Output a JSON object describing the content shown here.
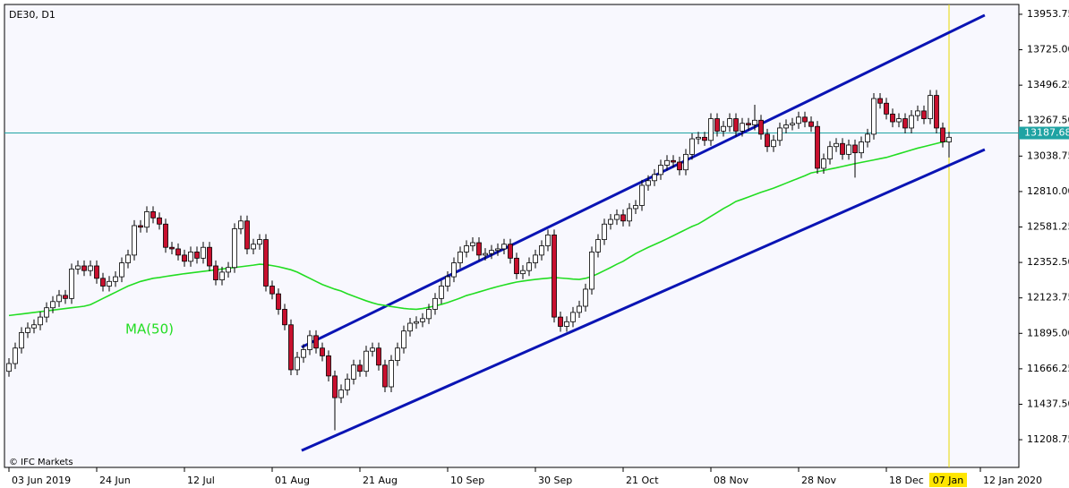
{
  "chart_data": {
    "type": "candlestick",
    "title": "DE30, D1",
    "watermark": "© IFC Markets",
    "categories": [
      "03 Jun 2019",
      null,
      null,
      null,
      null,
      null,
      null,
      null,
      null,
      null,
      null,
      null,
      null,
      null,
      "24 Jun",
      null,
      null,
      null,
      null,
      null,
      null,
      null,
      null,
      null,
      null,
      null,
      null,
      null,
      "12 Jul",
      null,
      null,
      null,
      null,
      null,
      null,
      null,
      null,
      null,
      null,
      null,
      null,
      null,
      "01 Aug",
      null,
      null,
      null,
      null,
      null,
      null,
      null,
      null,
      null,
      null,
      null,
      null,
      null,
      "21 Aug",
      null,
      null,
      null,
      null,
      null,
      null,
      null,
      null,
      null,
      null,
      null,
      null,
      null,
      "10 Sep",
      null,
      null,
      null,
      null,
      null,
      null,
      null,
      null,
      null,
      null,
      null,
      null,
      null,
      "30 Sep",
      null,
      null,
      null,
      null,
      null,
      null,
      null,
      null,
      null,
      null,
      null,
      null,
      null,
      "21 Oct",
      null,
      null,
      null,
      null,
      null,
      null,
      null,
      null,
      null,
      null,
      null,
      null,
      null,
      "08 Nov",
      null,
      null,
      null,
      null,
      null,
      null,
      null,
      null,
      null,
      null,
      null,
      null,
      null,
      "28 Nov",
      null,
      null,
      null,
      null,
      null,
      null,
      null,
      null,
      null,
      null,
      null,
      null,
      null,
      "18 Dec",
      null,
      null,
      null,
      null,
      null,
      null,
      null,
      null,
      null,
      "07 Jan",
      null,
      null,
      null,
      null,
      "12 Jan 2020"
    ],
    "open": [
      11650,
      11700,
      11800,
      11900,
      11930,
      11950,
      12000,
      12060,
      12100,
      12140,
      12120,
      12310,
      12330,
      12300,
      12330,
      12250,
      12200,
      12230,
      12260,
      12350,
      12400,
      12590,
      12580,
      12680,
      12640,
      12600,
      12450,
      12440,
      12400,
      12360,
      12420,
      12380,
      12450,
      12330,
      12240,
      12290,
      12320,
      12570,
      12620,
      12440,
      12470,
      12500,
      12200,
      12150,
      12050,
      11950,
      11660,
      11740,
      11790,
      11880,
      11800,
      11750,
      11620,
      11480,
      11530,
      11600,
      11690,
      11650,
      11780,
      11800,
      11690,
      11550,
      11720,
      11800,
      11910,
      11960,
      11970,
      11990,
      12050,
      12120,
      12200,
      12260,
      12350,
      12420,
      12460,
      12480,
      12400,
      12410,
      12430,
      12440,
      12470,
      12380,
      12280,
      12300,
      12350,
      12400,
      12460,
      12530,
      12000,
      11940,
      11970,
      12030,
      12070,
      12180,
      12420,
      12500,
      12600,
      12630,
      12660,
      12620,
      12700,
      12720,
      12850,
      12880,
      12920,
      12980,
      13010,
      13000,
      12950,
      13050,
      13150,
      13160,
      13140,
      13280,
      13200,
      13230,
      13280,
      13200,
      13250,
      13240,
      13270,
      13180,
      13100,
      13140,
      13220,
      13240,
      13250,
      13290,
      13260,
      13230,
      12960,
      13020,
      13100,
      13120,
      13050,
      13110,
      13060,
      13130,
      13180,
      13410,
      13380,
      13310,
      13260,
      13280,
      13220,
      13300,
      13330,
      13280,
      13430,
      13220,
      13130,
      null,
      null,
      null,
      null,
      null
    ],
    "high": [
      11735,
      11835,
      11935,
      11965,
      11985,
      12035,
      12095,
      12135,
      12175,
      12175,
      12345,
      12365,
      12365,
      12365,
      12365,
      12285,
      12265,
      12295,
      12385,
      12435,
      12625,
      12625,
      12715,
      12715,
      12675,
      12635,
      12485,
      12475,
      12435,
      12455,
      12455,
      12485,
      12485,
      12365,
      12325,
      12355,
      12605,
      12655,
      12655,
      12505,
      12535,
      12535,
      12235,
      12185,
      12085,
      11985,
      11775,
      11825,
      11915,
      11915,
      11835,
      11785,
      11655,
      11565,
      11635,
      11725,
      11725,
      11815,
      11835,
      11835,
      11725,
      11755,
      11835,
      11945,
      11995,
      12005,
      12025,
      12085,
      12155,
      12235,
      12295,
      12385,
      12455,
      12495,
      12515,
      12515,
      12445,
      12465,
      12475,
      12505,
      12505,
      12415,
      12335,
      12385,
      12435,
      12495,
      12565,
      12565,
      12035,
      12005,
      12065,
      12105,
      12215,
      12455,
      12535,
      12635,
      12665,
      12695,
      12695,
      12735,
      12755,
      12885,
      12915,
      12955,
      13015,
      13045,
      13045,
      13035,
      13085,
      13185,
      13195,
      13195,
      13315,
      13315,
      13265,
      13315,
      13315,
      13285,
      13285,
      13370,
      13305,
      13215,
      13175,
      13255,
      13275,
      13285,
      13325,
      13325,
      13295,
      13265,
      13055,
      13135,
      13155,
      13155,
      13145,
      13145,
      13165,
      13215,
      13445,
      13445,
      13415,
      13345,
      13315,
      13315,
      13335,
      13365,
      13365,
      13465,
      13465,
      13255,
      13195,
      null,
      null,
      null,
      null,
      null
    ],
    "low": [
      11615,
      11665,
      11765,
      11865,
      11895,
      11915,
      11965,
      12025,
      12065,
      12085,
      12085,
      12275,
      12265,
      12265,
      12215,
      12165,
      12165,
      12195,
      12225,
      12315,
      12365,
      12545,
      12545,
      12605,
      12565,
      12415,
      12405,
      12365,
      12325,
      12325,
      12345,
      12345,
      12295,
      12205,
      12205,
      12255,
      12285,
      12535,
      12405,
      12405,
      12435,
      12165,
      12115,
      12015,
      11915,
      11625,
      11625,
      11705,
      11755,
      11765,
      11715,
      11585,
      11270,
      11445,
      11495,
      11565,
      11615,
      11615,
      11745,
      11655,
      11515,
      11515,
      11685,
      11765,
      11875,
      11925,
      11935,
      11955,
      12015,
      12085,
      12165,
      12225,
      12315,
      12385,
      12425,
      12365,
      12365,
      12375,
      12395,
      12405,
      12345,
      12245,
      12245,
      12265,
      12315,
      12365,
      12425,
      11965,
      11905,
      11905,
      11935,
      11995,
      12035,
      12145,
      12385,
      12465,
      12565,
      12595,
      12585,
      12585,
      12665,
      12685,
      12815,
      12845,
      12885,
      12945,
      12965,
      12915,
      12915,
      13015,
      13115,
      13105,
      13105,
      13165,
      13165,
      13195,
      13165,
      13165,
      13205,
      13205,
      13145,
      13065,
      13065,
      13105,
      13185,
      13205,
      13215,
      13225,
      13195,
      12925,
      12925,
      12985,
      13065,
      13015,
      13015,
      12900,
      13025,
      13095,
      13145,
      13345,
      13275,
      13225,
      13225,
      13185,
      13185,
      13265,
      13245,
      13245,
      13185,
      13095,
      13030,
      null,
      null,
      null,
      null,
      null
    ],
    "close": [
      11700,
      11800,
      11900,
      11930,
      11950,
      12000,
      12060,
      12100,
      12140,
      12120,
      12310,
      12330,
      12300,
      12330,
      12250,
      12200,
      12230,
      12260,
      12350,
      12400,
      12590,
      12580,
      12680,
      12640,
      12600,
      12450,
      12440,
      12400,
      12360,
      12420,
      12380,
      12450,
      12330,
      12240,
      12290,
      12320,
      12570,
      12620,
      12440,
      12470,
      12500,
      12200,
      12150,
      12050,
      11950,
      11660,
      11740,
      11790,
      11880,
      11800,
      11750,
      11620,
      11480,
      11530,
      11600,
      11690,
      11650,
      11780,
      11800,
      11690,
      11550,
      11720,
      11800,
      11910,
      11960,
      11970,
      11990,
      12050,
      12120,
      12200,
      12260,
      12350,
      12420,
      12460,
      12480,
      12400,
      12410,
      12430,
      12440,
      12470,
      12380,
      12280,
      12300,
      12350,
      12400,
      12460,
      12530,
      12000,
      11940,
      11970,
      12030,
      12070,
      12180,
      12420,
      12500,
      12600,
      12630,
      12660,
      12620,
      12700,
      12720,
      12850,
      12880,
      12920,
      12980,
      13010,
      13000,
      12950,
      13050,
      13150,
      13160,
      13140,
      13280,
      13200,
      13230,
      13280,
      13200,
      13250,
      13240,
      13270,
      13180,
      13100,
      13140,
      13220,
      13240,
      13250,
      13290,
      13260,
      13230,
      12960,
      13020,
      13100,
      13120,
      13050,
      13110,
      13060,
      13130,
      13180,
      13410,
      13380,
      13310,
      13260,
      13280,
      13220,
      13300,
      13330,
      13280,
      13430,
      13220,
      13130,
      13160,
      null,
      null,
      null,
      null,
      null
    ],
    "up_color": "#ffffff",
    "down_color": "#c8102e",
    "ma": {
      "name": "MA(50)",
      "color": "#22dd22",
      "values": [
        12010,
        12015,
        12020,
        12025,
        12030,
        12035,
        12040,
        12045,
        12050,
        12055,
        12060,
        12065,
        12070,
        12080,
        12100,
        12120,
        12140,
        12160,
        12180,
        12200,
        12215,
        12230,
        12240,
        12250,
        12255,
        12262,
        12268,
        12274,
        12280,
        12285,
        12290,
        12295,
        12300,
        12305,
        12310,
        12315,
        12320,
        12325,
        12330,
        12335,
        12341,
        12338,
        12332,
        12325,
        12315,
        12305,
        12290,
        12270,
        12250,
        12230,
        12210,
        12195,
        12180,
        12168,
        12150,
        12135,
        12120,
        12105,
        12092,
        12081,
        12075,
        12068,
        12062,
        12056,
        12052,
        12050,
        12055,
        12063,
        12072,
        12082,
        12094,
        12108,
        12123,
        12139,
        12150,
        12162,
        12174,
        12186,
        12197,
        12207,
        12217,
        12226,
        12232,
        12238,
        12243,
        12247,
        12251,
        12255,
        12252,
        12249,
        12245,
        12243,
        12250,
        12262,
        12280,
        12300,
        12320,
        12341,
        12360,
        12385,
        12410,
        12430,
        12450,
        12468,
        12486,
        12505,
        12525,
        12545,
        12565,
        12585,
        12601,
        12625,
        12650,
        12675,
        12700,
        12722,
        12746,
        12760,
        12775,
        12790,
        12805,
        12818,
        12832,
        12848,
        12864,
        12880,
        12896,
        12912,
        12930,
        12938,
        12946,
        12955,
        12963,
        12972,
        12981,
        12990,
        12998,
        13006,
        13014,
        13022,
        13030,
        13042,
        13054,
        13066,
        13078,
        13090,
        13100,
        13110,
        13120,
        13130,
        13138,
        null,
        null,
        null,
        null,
        null
      ]
    },
    "trend_lines": [
      {
        "color": "#0a14b4",
        "x": [
          46.7,
          155.7
        ],
        "y": [
          11806,
          13948
        ]
      },
      {
        "color": "#0a14b4",
        "x": [
          46.7,
          155.7
        ],
        "y": [
          11139,
          13081
        ]
      }
    ],
    "last_price": 13187.68,
    "last_price_color": "#1fa3a3",
    "ylim": [
      11030,
      14017
    ],
    "yticks": [
      11208.75,
      {
        "value": 11437.5,
        "label": "11437.50"
      },
      11666.25,
      {
        "value": 11895,
        "label": "11895.00"
      },
      12123.75,
      {
        "value": 12352.5,
        "label": "12352.50"
      },
      12581.25,
      {
        "value": 12810,
        "label": "12810.00"
      },
      13038.75,
      {
        "value": 13267.5,
        "label": "13267.50"
      },
      13496.25,
      {
        "value": 13725,
        "label": "13725.00"
      },
      13953.75
    ]
  }
}
